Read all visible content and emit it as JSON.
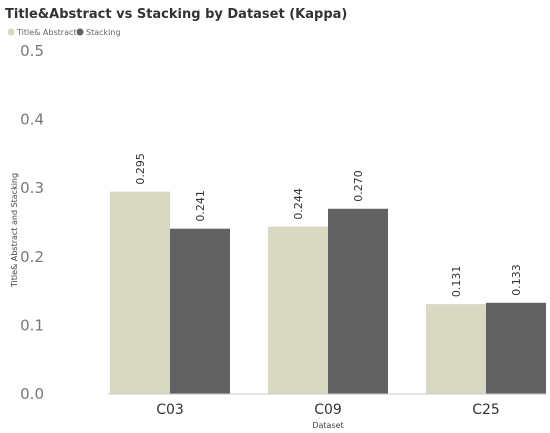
{
  "chart_data": {
    "type": "bar",
    "title": "Title&Abstract vs Stacking by Dataset (Kappa)",
    "xlabel": "Dataset",
    "ylabel": "Title& Abstract and Stacking",
    "categories": [
      "C03",
      "C09",
      "C25"
    ],
    "series": [
      {
        "name": "Title& Abstract",
        "color": "#D9D8C3",
        "values": [
          0.295,
          0.244,
          0.131
        ],
        "labels": [
          "0.295",
          "0.244",
          "0.131"
        ]
      },
      {
        "name": "Stacking",
        "color": "#626262",
        "values": [
          0.241,
          0.27,
          0.133
        ],
        "labels": [
          "0.241",
          "0.270",
          "0.133"
        ]
      }
    ],
    "ylim": [
      0,
      0.5
    ],
    "yticks": [
      "0.0",
      "0.1",
      "0.2",
      "0.3",
      "0.4",
      "0.5"
    ],
    "legend_position": "top-left",
    "grid": false
  }
}
